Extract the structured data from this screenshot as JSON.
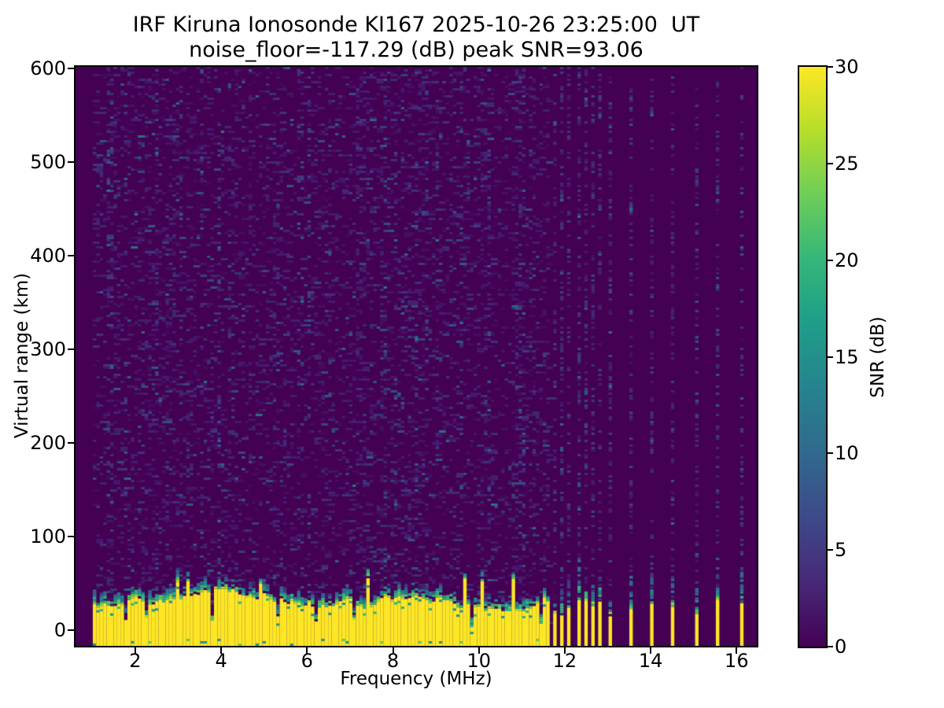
{
  "figure": {
    "title_line1": "IRF Kiruna Ionosonde KI167 2025-10-26 23:25:00  UT",
    "title_line2": "noise_floor=-117.29 (dB) peak SNR=93.06"
  },
  "chart_data": {
    "type": "heatmap",
    "title": "IRF Kiruna Ionosonde KI167 2025-10-26 23:25:00  UT",
    "subtitle": "noise_floor=-117.29 (dB) peak SNR=93.06",
    "xlabel": "Frequency (MHz)",
    "ylabel": "Virtual range (km)",
    "x_range": [
      0.61,
      16.47
    ],
    "y_range": [
      -17,
      602
    ],
    "x_ticks": [
      2,
      4,
      6,
      8,
      10,
      12,
      14,
      16
    ],
    "y_ticks": [
      0,
      100,
      200,
      300,
      400,
      500,
      600
    ],
    "noise_floor_db": -117.29,
    "peak_snr_db": 93.06,
    "grid": false,
    "colorbar": {
      "label": "SNR (dB)",
      "min": 0,
      "max": 30,
      "ticks": [
        0,
        5,
        10,
        15,
        20,
        25,
        30
      ],
      "colormap": "viridis",
      "stops": [
        [
          0,
          "#440154"
        ],
        [
          0.11,
          "#482878"
        ],
        [
          0.22,
          "#3e4989"
        ],
        [
          0.33,
          "#31688e"
        ],
        [
          0.44,
          "#26828e"
        ],
        [
          0.56,
          "#1f9e89"
        ],
        [
          0.67,
          "#35b779"
        ],
        [
          0.78,
          "#6ece58"
        ],
        [
          0.89,
          "#b5de2b"
        ],
        [
          1,
          "#fde725"
        ]
      ]
    },
    "heatmap": {
      "background_color": "#440154",
      "band_color": "#fde725",
      "speckle_colors": [
        "#46277c",
        "#414487",
        "#355f8d",
        "#2a788e",
        "#21918c"
      ],
      "band_transition_colors": [
        "#addc30",
        "#5ec962",
        "#35b779",
        "#21918c",
        "#2a788e",
        "#31688e",
        "#443983"
      ],
      "ground_echo_band": {
        "f_start": 1.0,
        "f_end": 11.58,
        "top_km_mean": 30,
        "top_km_min": 20,
        "top_km_max": 44,
        "notch_probability": 0.07,
        "description": "Saturated near-range echo, SNR >= 30 dB, from ~0 up to ~25-40 km, continuous from 1 MHz to ~11.6 MHz"
      },
      "spot_frequencies_mhz": [
        11.72,
        11.9,
        12.08,
        12.26,
        12.44,
        12.62,
        12.8,
        12.98,
        13.5,
        14.0,
        14.5,
        15.0,
        15.55,
        16.05
      ],
      "noise_description": "Sparse low-SNR (1-8 dB) receiver-noise speckles across 1-11.6 MHz at all virtual ranges; above 11.6 MHz speckles appear only in the sounded spot-frequency columns",
      "random_seed": 42
    }
  }
}
